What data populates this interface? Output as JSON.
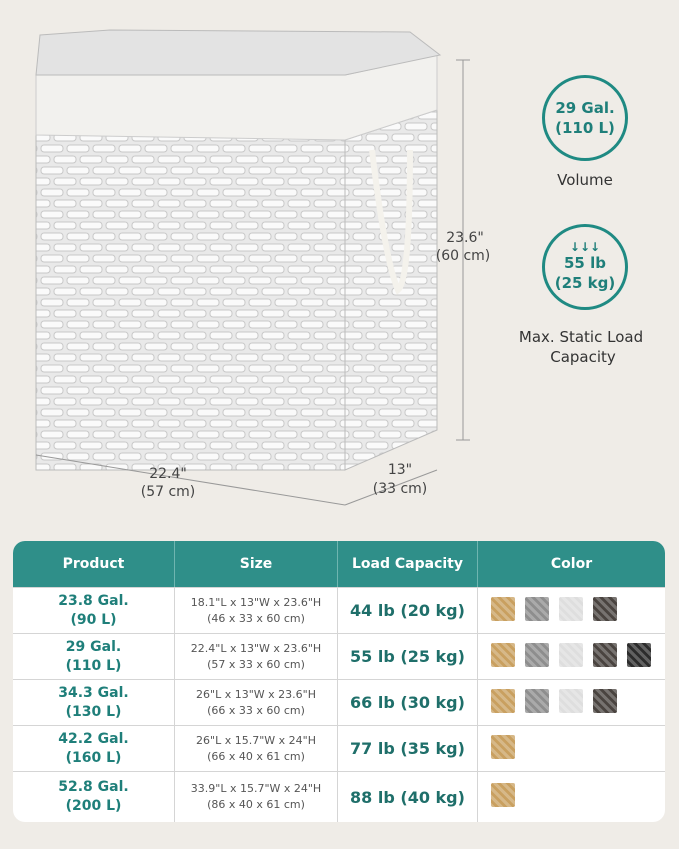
{
  "dimensions": {
    "height": {
      "inch": "23.6\"",
      "cm": "(60 cm)"
    },
    "length": {
      "inch": "22.4\"",
      "cm": "(57 cm)"
    },
    "width": {
      "inch": "13\"",
      "cm": "(33 cm)"
    }
  },
  "badges": [
    {
      "lines": [
        "29 Gal.",
        "(110 L)"
      ],
      "caption": "Volume"
    },
    {
      "lines": [
        "55 lb",
        "(25 kg)"
      ],
      "caption": [
        "Max. Static Load",
        "Capacity"
      ]
    }
  ],
  "table": {
    "headers": [
      "Product",
      "Size",
      "Load Capacity",
      "Color"
    ],
    "rows": [
      [
        [
          "23.8 Gal.",
          "(90 L)"
        ],
        [
          "18.1\"L x 13\"W x 23.6\"H",
          "(46 x 33 x 60 cm)"
        ],
        "44 lb (20 kg)"
      ],
      [
        [
          "29 Gal.",
          "(110 L)"
        ],
        [
          "22.4\"L x 13\"W x 23.6\"H",
          "(57 x 33 x 60 cm)"
        ],
        "55 lb (25 kg)"
      ],
      [
        [
          "34.3 Gal.",
          "(130 L)"
        ],
        [
          "26\"L x 13\"W x 23.6\"H",
          "(66 x 33 x 60 cm)"
        ],
        "66 lb (30 kg)"
      ],
      [
        [
          "42.2 Gal.",
          "(160 L)"
        ],
        [
          "26\"L x 15.7\"W x 24\"H",
          "(66 x 40 x 61 cm)"
        ],
        "77 lb (35 kg)"
      ],
      [
        [
          "52.8 Gal.",
          "(200 L)"
        ],
        [
          "33.9\"L x 15.7\"W x 24\"H",
          "(86 x 40 x 61 cm)"
        ],
        "88 lb (40 kg)"
      ]
    ]
  }
}
